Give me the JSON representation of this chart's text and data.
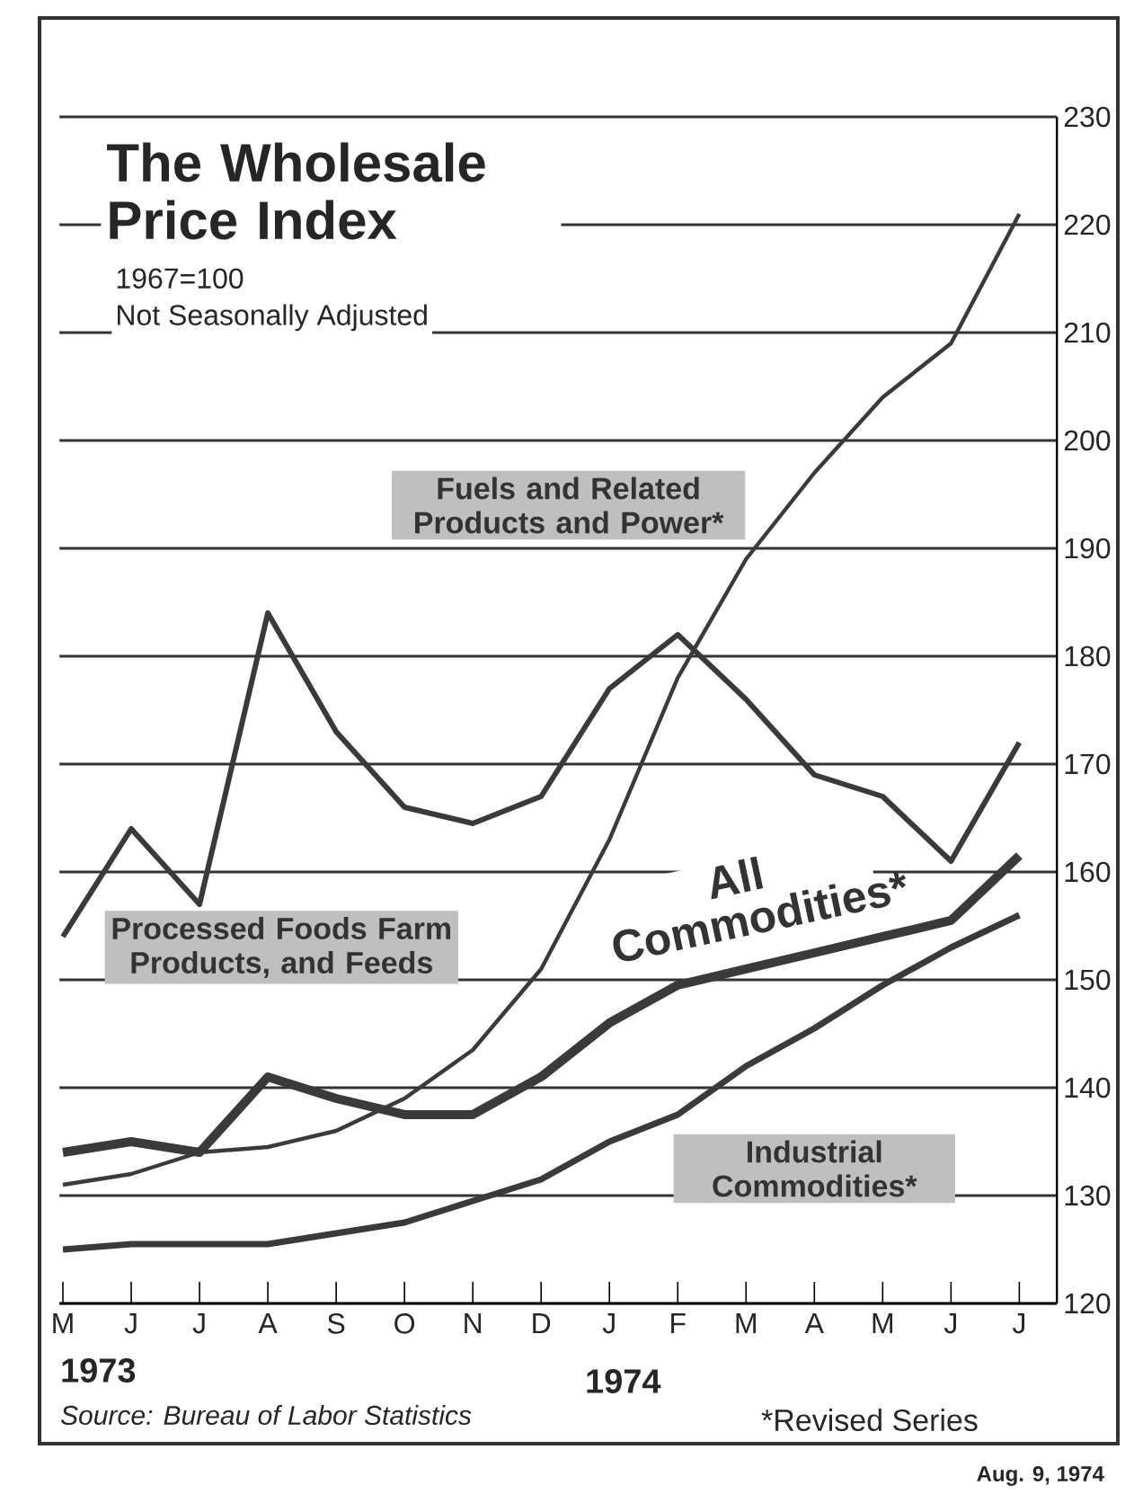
{
  "chart_data": {
    "type": "line",
    "title": "The Wholesale Price Index",
    "subtitle": "1967=100",
    "annotations": [
      "Not Seasonally Adjusted",
      "1973",
      "1974",
      "Source: Bureau of Labor Statistics",
      "*Revised Series",
      "Aug. 9, 1974"
    ],
    "categories": [
      "M",
      "J",
      "J",
      "A",
      "S",
      "O",
      "N",
      "D",
      "J",
      "F",
      "M",
      "A",
      "M",
      "J",
      "J"
    ],
    "series": [
      {
        "name": "Fuels and Related Products and Power*",
        "color": "#3a3a3a",
        "values": [
          131,
          132,
          134,
          134.5,
          136,
          139,
          143.5,
          151,
          163,
          178,
          189,
          197,
          204,
          209,
          221
        ]
      },
      {
        "name": "Processed Foods Farm Products, and Feeds",
        "color": "#3a3a3a",
        "values": [
          154,
          164,
          157,
          184,
          173,
          166,
          164.5,
          167,
          177,
          182,
          176,
          169,
          167,
          161,
          172
        ]
      },
      {
        "name": "All Commodities*",
        "color": "#3a3a3a",
        "values": [
          134,
          135,
          134,
          141,
          139,
          137.5,
          137.5,
          141,
          146,
          149.5,
          151,
          152.5,
          154,
          155.5,
          161.5
        ]
      },
      {
        "name": "Industrial Commodities*",
        "color": "#3a3a3a",
        "values": [
          125,
          125.5,
          125.5,
          125.5,
          126.5,
          127.5,
          129.5,
          131.5,
          135,
          137.5,
          142,
          145.5,
          149.5,
          153,
          156
        ]
      }
    ],
    "ylim": [
      120,
      230
    ],
    "yticks": [
      120,
      130,
      140,
      150,
      160,
      170,
      180,
      190,
      200,
      210,
      220,
      230
    ],
    "grid": "y",
    "legend": false
  }
}
